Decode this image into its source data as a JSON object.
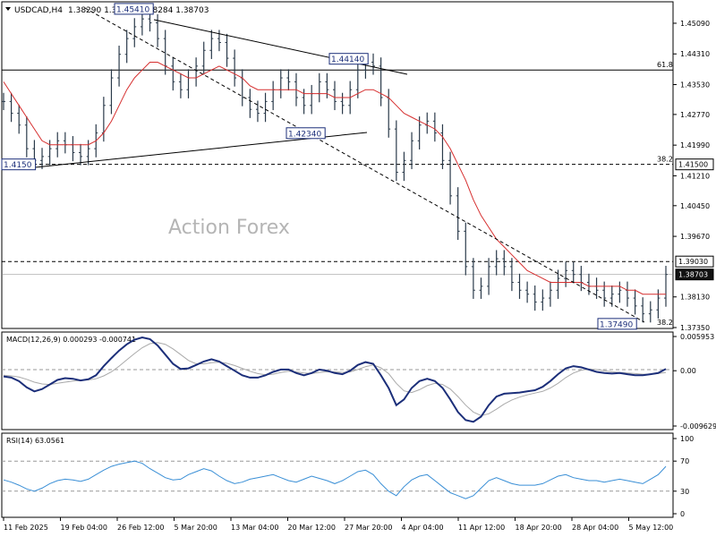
{
  "chart_data": {
    "type": "line",
    "title": "USDCAD,H4",
    "ohlc_text": "1.38290 1.38823 1.38284 1.38703",
    "watermark": "Action Forex",
    "x_labels": [
      "11 Feb 2025",
      "19 Feb 04:00",
      "26 Feb 12:00",
      "5 Mar 20:00",
      "13 Mar 04:00",
      "20 Mar 12:00",
      "27 Mar 20:00",
      "4 Apr 04:00",
      "11 Apr 12:00",
      "18 Apr 20:00",
      "28 Apr 04:00",
      "5 May 12:00"
    ],
    "price": {
      "ylim": [
        1.3735,
        1.4559
      ],
      "ticks": [
        "1.45090",
        "1.44310",
        "1.43530",
        "1.42770",
        "1.41990",
        "1.41210",
        "1.40450",
        "1.39670",
        "1.38130",
        "1.37350"
      ],
      "series": [
        1.431,
        1.428,
        1.425,
        1.419,
        1.416,
        1.417,
        1.419,
        1.421,
        1.42,
        1.418,
        1.417,
        1.419,
        1.423,
        1.43,
        1.437,
        1.443,
        1.447,
        1.45,
        1.452,
        1.451,
        1.447,
        1.44,
        1.436,
        1.434,
        1.437,
        1.44,
        1.444,
        1.447,
        1.446,
        1.442,
        1.437,
        1.432,
        1.429,
        1.428,
        1.431,
        1.434,
        1.437,
        1.436,
        1.432,
        1.43,
        1.433,
        1.436,
        1.434,
        1.431,
        1.43,
        1.434,
        1.439,
        1.441,
        1.44,
        1.432,
        1.424,
        1.413,
        1.416,
        1.421,
        1.425,
        1.426,
        1.423,
        1.416,
        1.407,
        1.398,
        1.389,
        1.383,
        1.384,
        1.389,
        1.391,
        1.389,
        1.385,
        1.383,
        1.382,
        1.38,
        1.381,
        1.383,
        1.386,
        1.388,
        1.387,
        1.385,
        1.384,
        1.383,
        1.381,
        1.382,
        1.383,
        1.381,
        1.379,
        1.377,
        1.378,
        1.381,
        1.387
      ],
      "ma_series": [
        1.436,
        1.433,
        1.43,
        1.427,
        1.424,
        1.421,
        1.42,
        1.42,
        1.42,
        1.42,
        1.42,
        1.42,
        1.421,
        1.423,
        1.426,
        1.43,
        1.434,
        1.437,
        1.439,
        1.441,
        1.441,
        1.44,
        1.439,
        1.438,
        1.437,
        1.437,
        1.438,
        1.439,
        1.44,
        1.439,
        1.438,
        1.437,
        1.435,
        1.434,
        1.434,
        1.434,
        1.434,
        1.434,
        1.434,
        1.433,
        1.433,
        1.433,
        1.433,
        1.432,
        1.432,
        1.432,
        1.433,
        1.434,
        1.434,
        1.433,
        1.432,
        1.43,
        1.428,
        1.427,
        1.426,
        1.425,
        1.424,
        1.422,
        1.419,
        1.415,
        1.411,
        1.406,
        1.402,
        1.399,
        1.396,
        1.394,
        1.392,
        1.39,
        1.388,
        1.387,
        1.386,
        1.385,
        1.385,
        1.385,
        1.385,
        1.385,
        1.384,
        1.384,
        1.384,
        1.384,
        1.384,
        1.383,
        1.383,
        1.382,
        1.382,
        1.382,
        1.382
      ],
      "labels": [
        {
          "text": "1.45410",
          "value": 1.4541
        },
        {
          "text": "1.44140",
          "value": 1.4414
        },
        {
          "text": "1.42340",
          "value": 1.4234
        },
        {
          "text": "1.37490",
          "value": 1.3749
        },
        {
          "text": "1.4150",
          "value": 1.415
        }
      ],
      "h_lines": [
        {
          "value": 1.439,
          "label": "61.8",
          "style": "solid"
        },
        {
          "value": 1.415,
          "label": "38.2",
          "style": "dashed",
          "box": "1.41500"
        },
        {
          "value": 1.3903,
          "label": "",
          "style": "dashed",
          "box": "1.39030"
        },
        {
          "value": 1.387,
          "label": "",
          "style": "solid",
          "box": "1.38703",
          "dark": true
        },
        {
          "value": 1.3735,
          "label": "38.2",
          "style": "none"
        }
      ]
    },
    "macd": {
      "label": "MACD(12,26,9) 0.000293 -0.000741",
      "ylim": [
        -0.009629,
        0.005953
      ],
      "ticks": [
        "0.005953",
        "0.00",
        "-0.009629"
      ],
      "macd_series": [
        -0.001,
        -0.0012,
        -0.0018,
        -0.0029,
        -0.0036,
        -0.0032,
        -0.0024,
        -0.0016,
        -0.0013,
        -0.0014,
        -0.0017,
        -0.0015,
        -0.0008,
        0.0008,
        0.0022,
        0.0035,
        0.0046,
        0.0054,
        0.0058,
        0.0055,
        0.0044,
        0.0028,
        0.0012,
        0.0003,
        0.0004,
        0.001,
        0.0016,
        0.002,
        0.0016,
        0.0008,
        0.0,
        -0.0008,
        -0.0012,
        -0.0012,
        -0.0008,
        -0.0002,
        0.0002,
        0.0002,
        -0.0004,
        -0.0008,
        -0.0004,
        0.0002,
        0.0,
        -0.0004,
        -0.0006,
        0.0,
        0.001,
        0.0015,
        0.0012,
        -0.0008,
        -0.003,
        -0.006,
        -0.005,
        -0.003,
        -0.0018,
        -0.0014,
        -0.0018,
        -0.003,
        -0.005,
        -0.0072,
        -0.0086,
        -0.0089,
        -0.008,
        -0.006,
        -0.0045,
        -0.004,
        -0.0039,
        -0.0038,
        -0.0036,
        -0.0034,
        -0.0028,
        -0.0018,
        -0.0006,
        0.0004,
        0.0008,
        0.0006,
        0.0002,
        -0.0002,
        -0.0004,
        -0.0005,
        -0.0004,
        -0.0006,
        -0.0008,
        -0.0008,
        -0.0006,
        -0.0004,
        0.0003
      ],
      "signal_series": [
        -0.0008,
        -0.0009,
        -0.0011,
        -0.0015,
        -0.002,
        -0.0023,
        -0.0024,
        -0.0022,
        -0.002,
        -0.0018,
        -0.0017,
        -0.0016,
        -0.0014,
        -0.0009,
        -0.0002,
        0.0008,
        0.0019,
        0.003,
        0.004,
        0.0047,
        0.0049,
        0.0046,
        0.0038,
        0.0028,
        0.0018,
        0.0012,
        0.0012,
        0.0014,
        0.0015,
        0.0013,
        0.0009,
        0.0004,
        -0.0001,
        -0.0005,
        -0.0007,
        -0.0006,
        -0.0003,
        -0.0001,
        -0.0002,
        -0.0004,
        -0.0005,
        -0.0003,
        -0.0002,
        -0.0002,
        -0.0003,
        -0.0002,
        0.0002,
        0.0007,
        0.001,
        0.0005,
        -0.0005,
        -0.0022,
        -0.0035,
        -0.0038,
        -0.0033,
        -0.0026,
        -0.0022,
        -0.0024,
        -0.0032,
        -0.0045,
        -0.006,
        -0.0072,
        -0.0078,
        -0.0075,
        -0.0067,
        -0.0058,
        -0.0051,
        -0.0046,
        -0.0042,
        -0.0039,
        -0.0036,
        -0.003,
        -0.0022,
        -0.0012,
        -0.0004,
        0.0001,
        0.0003,
        0.0002,
        0.0,
        -0.0002,
        -0.0003,
        -0.0004,
        -0.0005,
        -0.0006,
        -0.0006,
        -0.0005,
        -0.0003
      ]
    },
    "rsi": {
      "label": "RSI(14) 63.0561",
      "ylim": [
        0,
        100
      ],
      "ticks": [
        "100",
        "70",
        "30",
        "0"
      ],
      "levels": [
        70,
        30
      ],
      "series": [
        45,
        42,
        38,
        33,
        30,
        34,
        40,
        44,
        46,
        45,
        43,
        46,
        52,
        58,
        63,
        66,
        68,
        70,
        67,
        60,
        54,
        48,
        45,
        46,
        52,
        56,
        60,
        57,
        50,
        44,
        40,
        42,
        46,
        48,
        50,
        52,
        48,
        44,
        42,
        46,
        50,
        47,
        44,
        40,
        44,
        50,
        56,
        58,
        52,
        40,
        30,
        24,
        36,
        45,
        50,
        52,
        44,
        36,
        28,
        24,
        20,
        24,
        34,
        44,
        48,
        44,
        40,
        38,
        38,
        38,
        40,
        45,
        50,
        52,
        48,
        46,
        44,
        44,
        42,
        44,
        46,
        44,
        42,
        40,
        46,
        52,
        63
      ]
    }
  }
}
